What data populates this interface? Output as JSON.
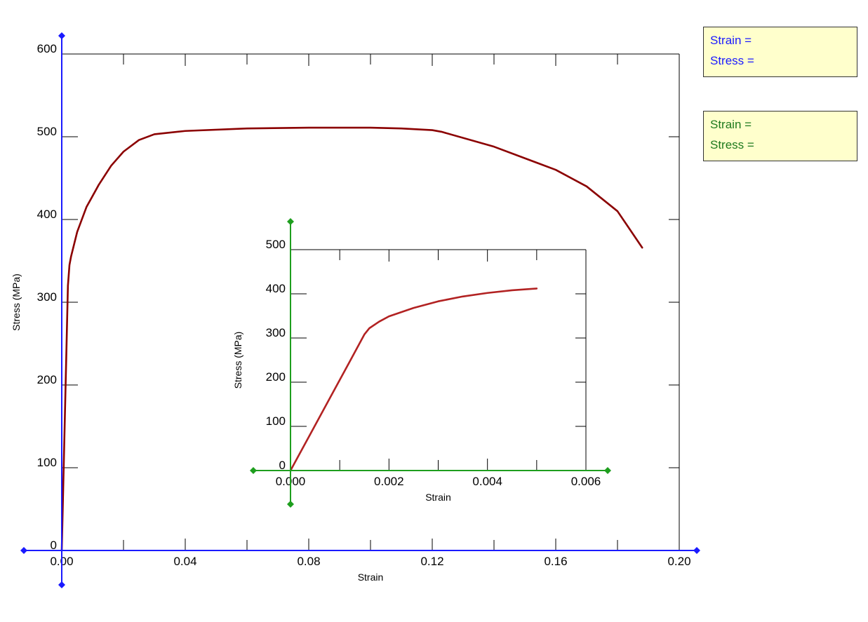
{
  "readouts": {
    "main": {
      "strain_label": "Strain =",
      "stress_label": "Stress =",
      "color": "#1a1aff"
    },
    "inset": {
      "strain_label": "Strain =",
      "stress_label": "Stress =",
      "color": "#1e7a1e"
    }
  },
  "chart_data": [
    {
      "type": "line",
      "title": "",
      "xlabel": "Strain",
      "ylabel": "Stress (MPa)",
      "xlim": [
        0,
        0.2
      ],
      "ylim": [
        0,
        600
      ],
      "x_ticks": [
        0,
        0.04,
        0.08,
        0.12,
        0.16,
        0.2
      ],
      "x_tick_labels": [
        "0.00",
        "0.04",
        "0.08",
        "0.12",
        "0.16",
        "0.20"
      ],
      "y_ticks": [
        0,
        100,
        200,
        300,
        400,
        500,
        600
      ],
      "y_tick_labels": [
        "0",
        "100",
        "200",
        "300",
        "400",
        "500",
        "600"
      ],
      "grid": false,
      "axis_color": "#1a1aff",
      "series": [
        {
          "color": "#8b0000",
          "x": [
            0,
            0.0005,
            0.001,
            0.0015,
            0.002,
            0.0025,
            0.003,
            0.005,
            0.008,
            0.012,
            0.016,
            0.02,
            0.025,
            0.03,
            0.04,
            0.06,
            0.08,
            0.1,
            0.11,
            0.12,
            0.123,
            0.14,
            0.16,
            0.17,
            0.18,
            0.188
          ],
          "y": [
            0,
            80,
            160,
            240,
            320,
            345,
            355,
            385,
            415,
            442,
            465,
            482,
            496,
            503,
            507,
            510,
            511,
            511,
            510,
            508,
            506,
            488,
            460,
            440,
            410,
            366
          ]
        }
      ]
    },
    {
      "type": "line",
      "title": "",
      "xlabel": "Strain",
      "ylabel": "Stress (MPa)",
      "xlim": [
        0,
        0.006
      ],
      "ylim": [
        0,
        500
      ],
      "x_ticks": [
        0,
        0.002,
        0.004,
        0.006
      ],
      "x_tick_labels": [
        "0.000",
        "0.002",
        "0.004",
        "0.006"
      ],
      "y_ticks": [
        0,
        100,
        200,
        300,
        400,
        500
      ],
      "y_tick_labels": [
        "0",
        "100",
        "200",
        "300",
        "400",
        "500"
      ],
      "grid": false,
      "axis_color": "#1e9e1e",
      "series": [
        {
          "color": "#b22222",
          "x": [
            0,
            0.0004,
            0.0008,
            0.0012,
            0.0015,
            0.0016,
            0.0018,
            0.002,
            0.0025,
            0.003,
            0.0035,
            0.004,
            0.0045,
            0.005
          ],
          "y": [
            0,
            82,
            164,
            246,
            308,
            322,
            337,
            349,
            368,
            383,
            394,
            402,
            408,
            412
          ]
        }
      ]
    }
  ]
}
